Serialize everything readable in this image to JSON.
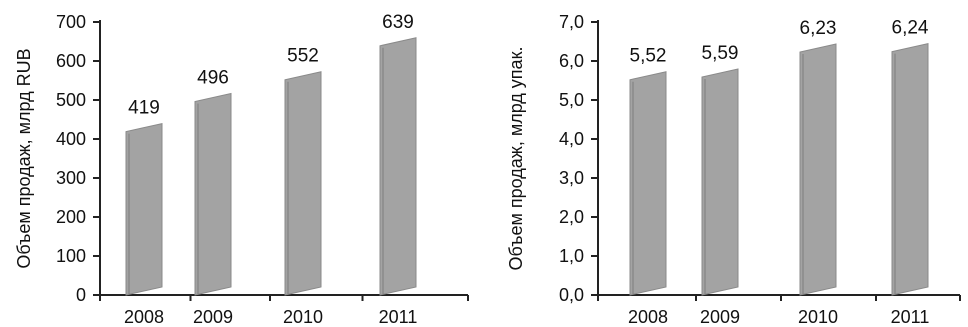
{
  "chart_data": [
    {
      "type": "bar",
      "categories": [
        "2008",
        "2009",
        "2010",
        "2011"
      ],
      "values": [
        419,
        496,
        552,
        639
      ],
      "value_labels": [
        "419",
        "496",
        "552",
        "639"
      ],
      "ylabel": "Объем продаж, млрд RUB",
      "ylim": [
        0,
        700
      ],
      "yticks": [
        0,
        100,
        200,
        300,
        400,
        500,
        600,
        700
      ],
      "ytick_labels": [
        "0",
        "100",
        "200",
        "300",
        "400",
        "500",
        "600",
        "700"
      ],
      "bar_color": "#a3a3a3",
      "grid": false
    },
    {
      "type": "bar",
      "categories": [
        "2008",
        "2009",
        "2010",
        "2011"
      ],
      "values": [
        5.52,
        5.59,
        6.23,
        6.24
      ],
      "value_labels": [
        "5,52",
        "5,59",
        "6,23",
        "6,24"
      ],
      "ylabel": "Объем продаж, млрд упак.",
      "ylim": [
        0,
        7
      ],
      "yticks": [
        0,
        1,
        2,
        3,
        4,
        5,
        6,
        7
      ],
      "ytick_labels": [
        "0,0",
        "1,0",
        "2,0",
        "3,0",
        "4,0",
        "5,0",
        "6,0",
        "7,0"
      ],
      "bar_color": "#a3a3a3",
      "grid": false
    }
  ]
}
